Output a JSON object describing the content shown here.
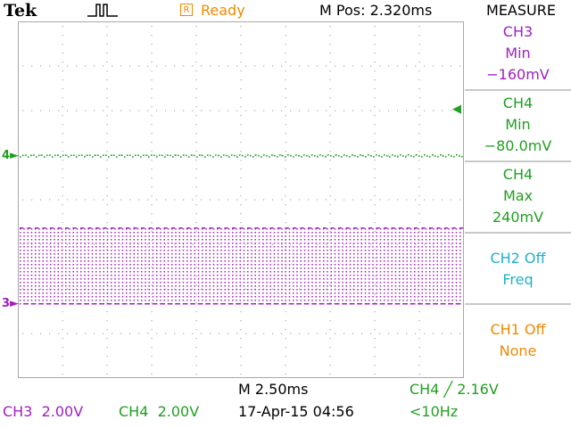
{
  "header": {
    "brand": "Tek",
    "status": "Ready",
    "status_icon_letter": "R",
    "horizontal_position": "M Pos: 2.320ms"
  },
  "measure": {
    "title": "MEASURE",
    "items": [
      {
        "source": "CH3",
        "type": "Min",
        "value": "−160mV",
        "color": "#a020c0"
      },
      {
        "source": "CH4",
        "type": "Min",
        "value": "−80.0mV",
        "color": "#20a020"
      },
      {
        "source": "CH4",
        "type": "Max",
        "value": "240mV",
        "color": "#20a020"
      },
      {
        "source": "CH2 Off",
        "type": "Freq",
        "value": "",
        "color": "#20b0c8"
      },
      {
        "source": "CH1 Off",
        "type": "None",
        "value": "",
        "color": "#f08a00"
      }
    ]
  },
  "channels": {
    "ch3": {
      "label": "CH3",
      "scale": "2.00V",
      "marker": "3",
      "color": "#a020c0"
    },
    "ch4": {
      "label": "CH4",
      "scale": "2.00V",
      "marker": "4",
      "color": "#20a020"
    }
  },
  "timebase": {
    "scale": "M 2.50ms",
    "datetime": "17-Apr-15 04:56"
  },
  "trigger": {
    "source": "CH4",
    "slope_symbol": "╱",
    "level": "2.16V",
    "frequency": "<10Hz",
    "color": "#20a020"
  },
  "colors": {
    "grid": "#a8a8a8",
    "orange": "#f08a00"
  }
}
